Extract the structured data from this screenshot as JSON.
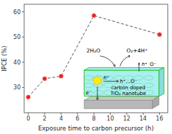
{
  "chart_data": {
    "type": "line",
    "x": [
      0,
      2,
      4,
      8,
      16
    ],
    "values": [
      26.2,
      33.5,
      34.5,
      58.5,
      51.0
    ],
    "color": "#ee2222",
    "line_style": "dashed",
    "marker": "circle",
    "xlabel": "Exposure time to carbon precursor (h)",
    "ylabel": "IPCE (%)",
    "xlim": [
      -0.5,
      17
    ],
    "ylim": [
      20,
      63
    ],
    "xticks": [
      0,
      2,
      4,
      6,
      8,
      10,
      12,
      14,
      16
    ],
    "yticks": [
      30,
      40,
      50,
      60
    ],
    "grid": false,
    "annotations": [
      "2H₂O",
      "O₂+4H⁺",
      "h⁺",
      "O⁻",
      "h⁺",
      "h⁺…O⁻",
      "e⁻",
      "carbon doped",
      "TiO₂ nanotube"
    ]
  }
}
